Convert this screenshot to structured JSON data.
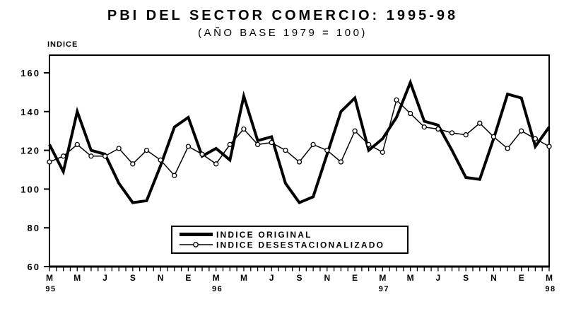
{
  "title": "PBI DEL SECTOR COMERCIO: 1995-98",
  "subtitle": "(AÑO BASE 1979 = 100)",
  "y_axis_label": "INDICE",
  "legend": {
    "original": "INDICE ORIGINAL",
    "desestacionalizado": "INDICE DESESTACIONALIZADO"
  },
  "colors": {
    "line": "#000000",
    "background": "#ffffff",
    "marker_fill": "#ffffff"
  },
  "chart_data": {
    "type": "line",
    "title": "PBI DEL SECTOR COMERCIO: 1995-98",
    "subtitle": "(AÑO BASE 1979 = 100)",
    "ylabel": "INDICE",
    "xlabel": "",
    "ylim": [
      60,
      169
    ],
    "y_ticks": [
      160,
      140,
      120,
      100,
      80,
      60
    ],
    "grid": false,
    "legend_position": "inside-bottom-center",
    "x": [
      "Mar-95",
      "Abr-95",
      "May-95",
      "Jun-95",
      "Jul-95",
      "Ago-95",
      "Sep-95",
      "Oct-95",
      "Nov-95",
      "Dic-95",
      "Ene-96",
      "Feb-96",
      "Mar-96",
      "Abr-96",
      "May-96",
      "Jun-96",
      "Jul-96",
      "Ago-96",
      "Sep-96",
      "Oct-96",
      "Nov-96",
      "Dic-96",
      "Ene-97",
      "Feb-97",
      "Mar-97",
      "Abr-97",
      "May-97",
      "Jun-97",
      "Jul-97",
      "Ago-97",
      "Sep-97",
      "Oct-97",
      "Nov-97",
      "Dic-97",
      "Ene-98",
      "Feb-98",
      "Mar-98"
    ],
    "x_tick_labels": [
      "M",
      "M",
      "J",
      "S",
      "N",
      "E",
      "M",
      "M",
      "J",
      "S",
      "N",
      "E",
      "M",
      "M",
      "J",
      "S",
      "N",
      "E",
      "M"
    ],
    "x_year_labels": [
      {
        "text": "95",
        "month_index": 0
      },
      {
        "text": "96",
        "month_index": 12
      },
      {
        "text": "97",
        "month_index": 24
      },
      {
        "text": "98",
        "month_index": 36
      }
    ],
    "series": [
      {
        "name": "INDICE ORIGINAL",
        "style": "thick",
        "values": [
          123,
          109,
          140,
          120,
          118,
          103,
          93,
          94,
          112,
          132,
          137,
          117,
          121,
          115,
          148,
          125,
          127,
          103,
          93,
          96,
          118,
          140,
          147,
          120,
          126,
          137,
          155,
          135,
          133,
          120,
          106,
          105,
          126,
          149,
          147,
          122,
          132
        ]
      },
      {
        "name": "INDICE DESESTACIONALIZADO",
        "style": "thin-circle-marker",
        "values": [
          114,
          117,
          123,
          117,
          117,
          121,
          113,
          120,
          115,
          107,
          122,
          118,
          113,
          123,
          131,
          123,
          124,
          120,
          114,
          123,
          120,
          114,
          130,
          123,
          119,
          146,
          139,
          132,
          131,
          129,
          128,
          134,
          127,
          121,
          130,
          126,
          122
        ]
      }
    ]
  }
}
